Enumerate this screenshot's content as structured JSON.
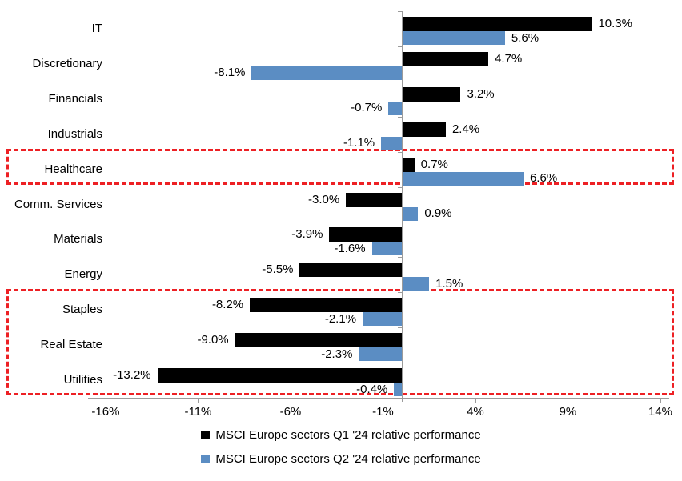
{
  "chart_data": {
    "type": "bar",
    "orientation": "horizontal",
    "title": "",
    "xlabel": "",
    "ylabel": "",
    "grid": false,
    "legend_position": "bottom",
    "categories": [
      "IT",
      "Discretionary",
      "Financials",
      "Industrials",
      "Healthcare",
      "Comm. Services",
      "Materials",
      "Energy",
      "Staples",
      "Real Estate",
      "Utilities"
    ],
    "series": [
      {
        "key": "q1",
        "name": "MSCI Europe sectors Q1 '24 relative performance",
        "color": "#000000",
        "values": [
          10.3,
          4.7,
          3.2,
          2.4,
          0.7,
          -3.0,
          -3.9,
          -5.5,
          -8.2,
          -9.0,
          -13.2
        ],
        "labels": [
          "10.3%",
          "4.7%",
          "3.2%",
          "2.4%",
          "0.7%",
          "-3.0%",
          "-3.9%",
          "-5.5%",
          "-8.2%",
          "-9.0%",
          "-13.2%"
        ]
      },
      {
        "key": "q2",
        "name": "MSCI Europe sectors Q2 '24 relative performance",
        "color": "#5B8DC3",
        "values": [
          5.6,
          -8.1,
          -0.7,
          -1.1,
          6.6,
          0.9,
          -1.6,
          1.5,
          -2.1,
          -2.3,
          -0.4
        ],
        "labels": [
          "5.6%",
          "-8.1%",
          "-0.7%",
          "-1.1%",
          "6.6%",
          "0.9%",
          "-1.6%",
          "1.5%",
          "-2.1%",
          "-2.3%",
          "-0.4%"
        ]
      }
    ],
    "x_tick_labels": [
      "-16%",
      "-11%",
      "-6%",
      "-1%",
      "4%",
      "9%",
      "14%"
    ],
    "x_tick_values": [
      -16,
      -11,
      -6,
      -1,
      4,
      9,
      14
    ],
    "xlim": [
      -16.95,
      14.48
    ],
    "axis_color": "#9b9b9b",
    "highlight_color": "#ED2024",
    "highlight_boxes": [
      {
        "label": "healthcare-highlight",
        "rows": [
          "Healthcare"
        ],
        "start_row": 4,
        "row_span": 1
      },
      {
        "label": "defensives-highlight",
        "rows": [
          "Staples",
          "Real Estate",
          "Utilities"
        ],
        "start_row": 8,
        "row_span": 3
      }
    ]
  }
}
